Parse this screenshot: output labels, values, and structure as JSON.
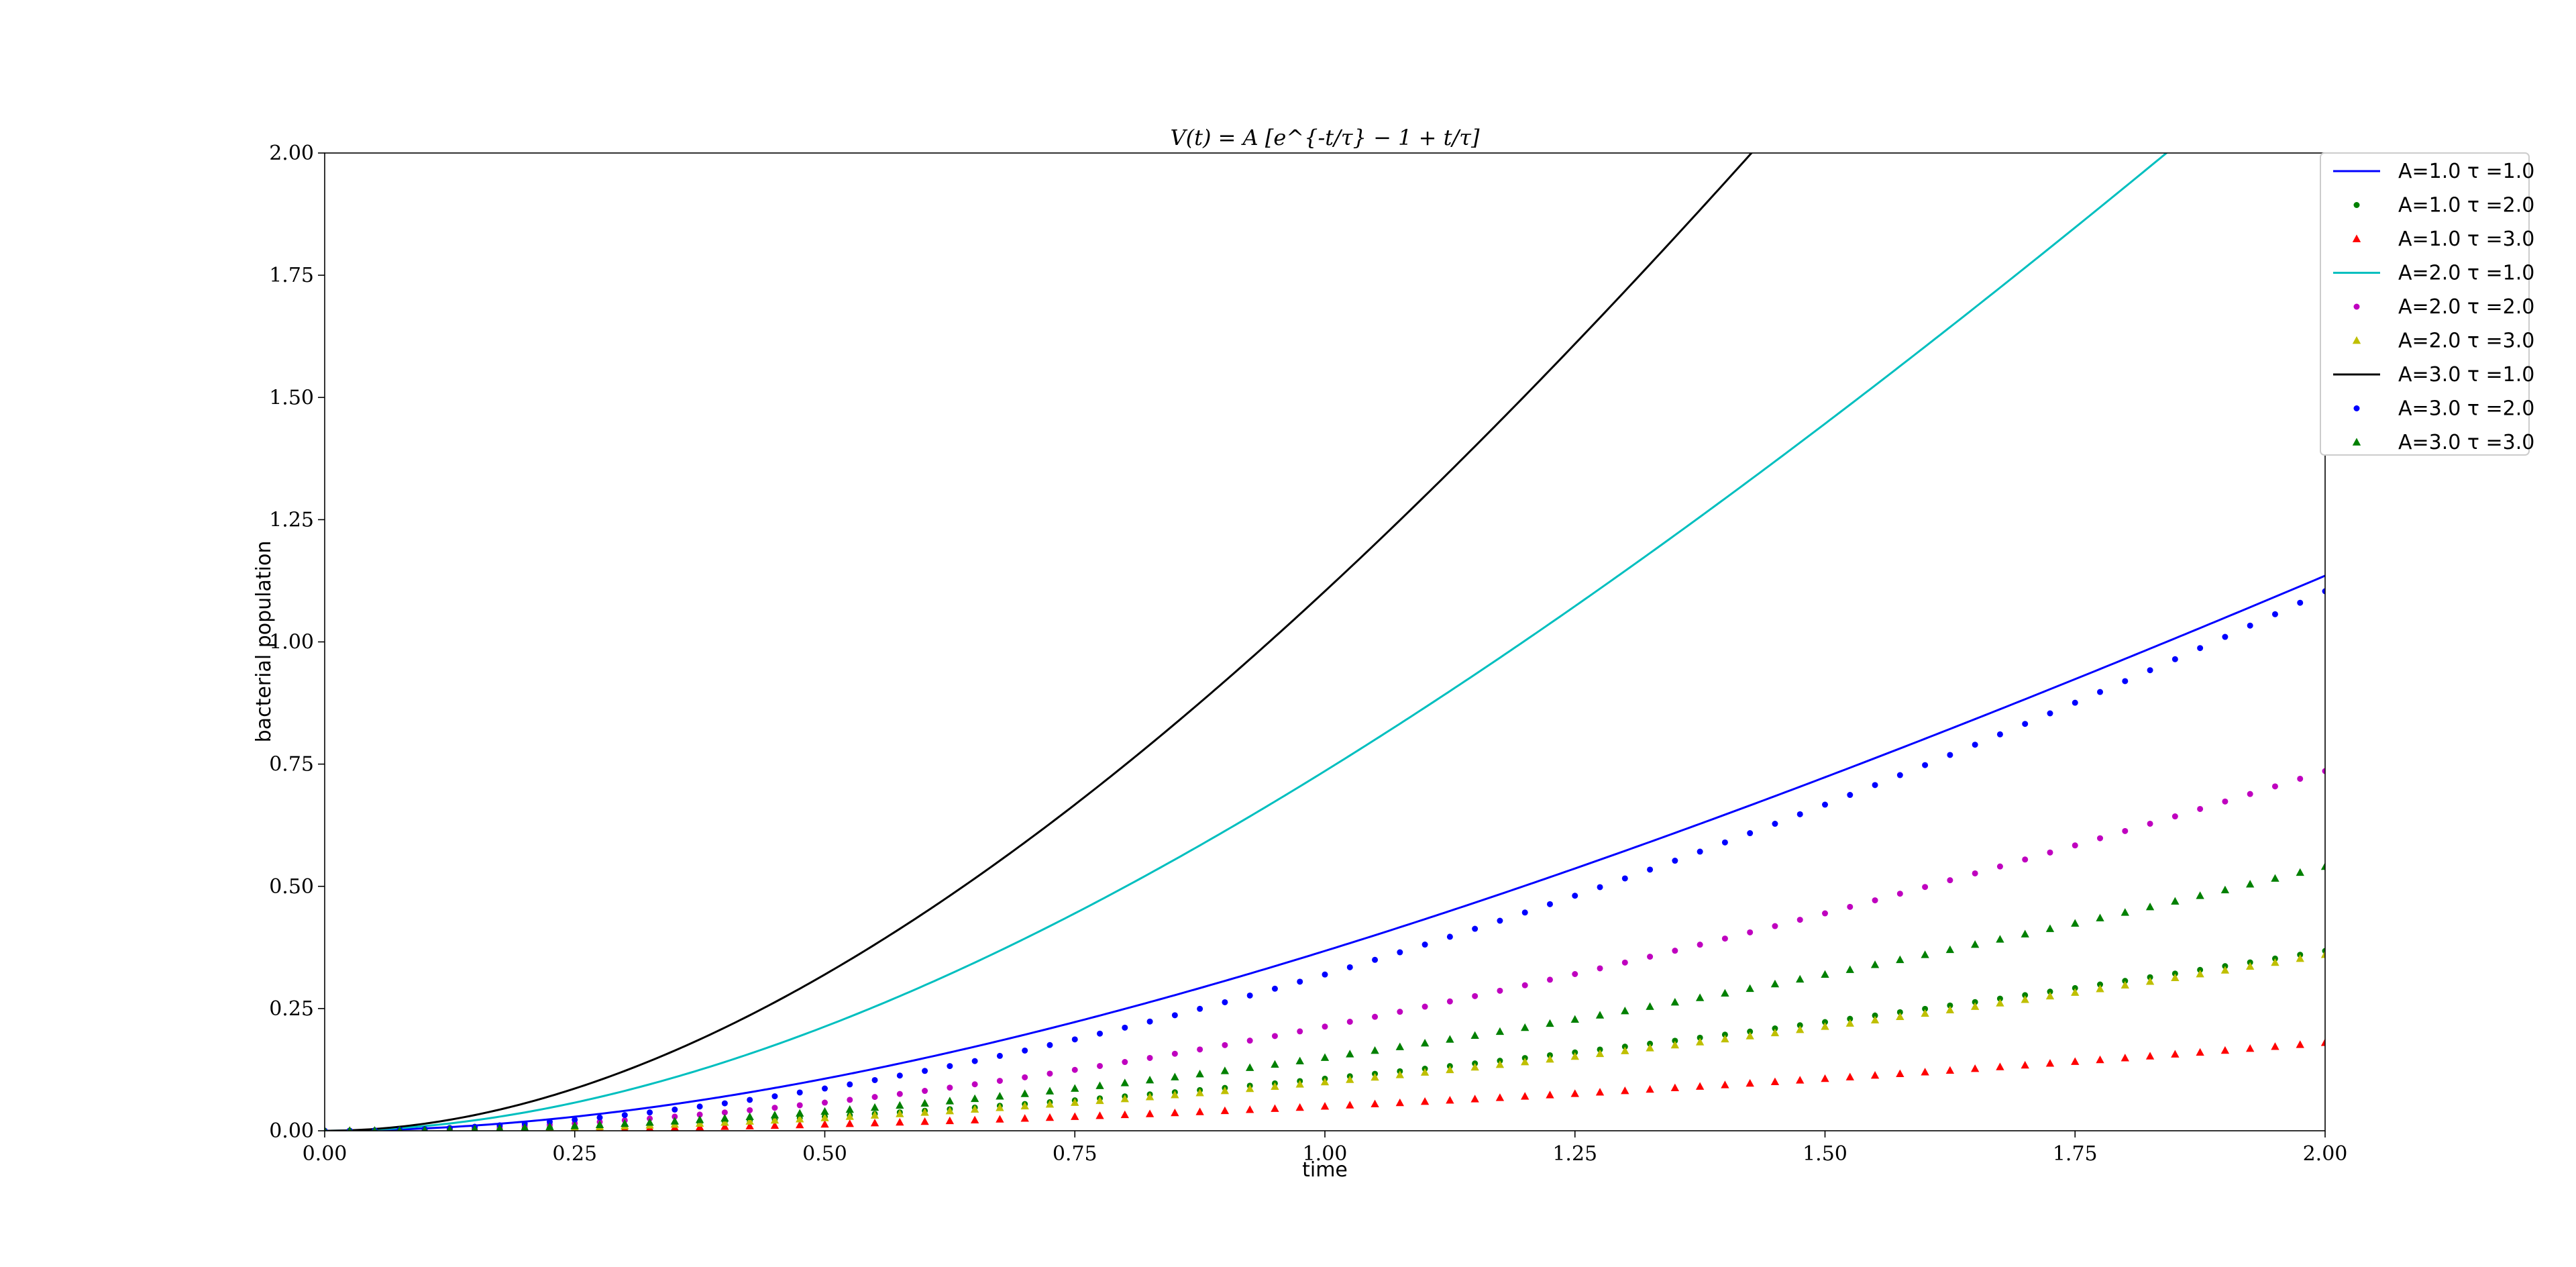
{
  "chart_data": {
    "type": "line",
    "title": "V(t) = A [e^{-t/τ} − 1 + t/τ]",
    "xlabel": "time",
    "ylabel": "bacterial population",
    "xlim": [
      0,
      2
    ],
    "ylim": [
      0,
      2
    ],
    "x_ticks": [
      "0.00",
      "0.25",
      "0.50",
      "0.75",
      "1.00",
      "1.25",
      "1.50",
      "1.75",
      "2.00"
    ],
    "y_ticks": [
      "0.00",
      "0.25",
      "0.50",
      "0.75",
      "1.00",
      "1.25",
      "1.50",
      "1.75",
      "2.00"
    ],
    "grid": false,
    "legend_position": "outside-top-right",
    "x_sample_step": 0.025,
    "series": [
      {
        "name": "A=1.0 τ =1.0",
        "A": 1.0,
        "tau": 1.0,
        "style": "line",
        "color": "#0000ff"
      },
      {
        "name": "A=1.0 τ =2.0",
        "A": 1.0,
        "tau": 2.0,
        "style": "circle",
        "color": "#008000"
      },
      {
        "name": "A=1.0 τ =3.0",
        "A": 1.0,
        "tau": 3.0,
        "style": "triangle",
        "color": "#ff0000"
      },
      {
        "name": "A=2.0 τ =1.0",
        "A": 2.0,
        "tau": 1.0,
        "style": "line",
        "color": "#00bfbf"
      },
      {
        "name": "A=2.0 τ =2.0",
        "A": 2.0,
        "tau": 2.0,
        "style": "circle",
        "color": "#bf00bf"
      },
      {
        "name": "A=2.0 τ =3.0",
        "A": 2.0,
        "tau": 3.0,
        "style": "triangle",
        "color": "#bfbf00"
      },
      {
        "name": "A=3.0 τ =1.0",
        "A": 3.0,
        "tau": 1.0,
        "style": "line",
        "color": "#000000"
      },
      {
        "name": "A=3.0 τ =2.0",
        "A": 3.0,
        "tau": 2.0,
        "style": "circle",
        "color": "#0000ff"
      },
      {
        "name": "A=3.0 τ =3.0",
        "A": 3.0,
        "tau": 3.0,
        "style": "triangle",
        "color": "#008000"
      }
    ]
  }
}
